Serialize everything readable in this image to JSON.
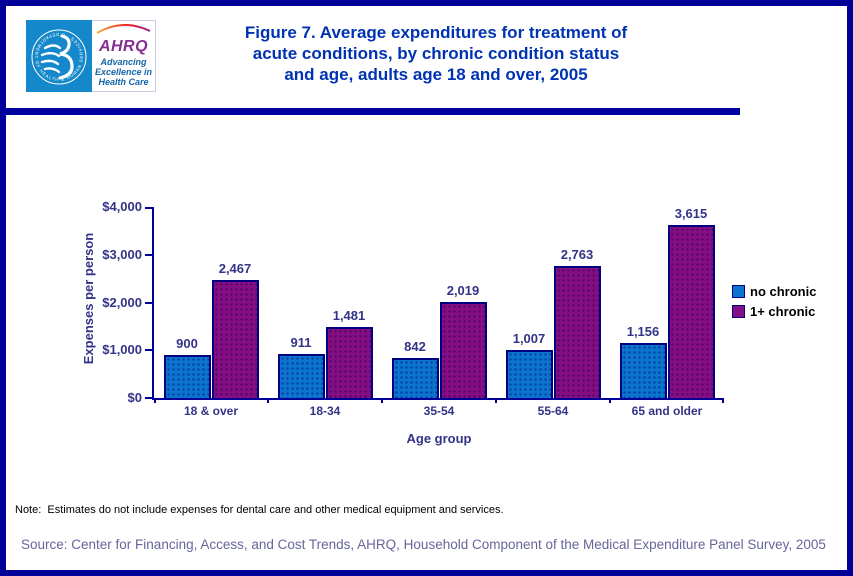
{
  "header": {
    "hhs_seal_text": "DEPARTMENT OF HEALTH & HUMAN SERVICES · USA",
    "ahrq_acronym": "AHRQ",
    "ahrq_tagline_lines": [
      "Advancing",
      "Excellence in",
      "Health Care"
    ],
    "title_lines": [
      "Figure 7. Average expenditures for treatment of",
      "acute conditions, by chronic condition status",
      "and age, adults age 18 and over, 2005"
    ]
  },
  "chart_data": {
    "type": "bar",
    "categories": [
      "18 & over",
      "18-34",
      "35-54",
      "55-64",
      "65 and older"
    ],
    "series": [
      {
        "name": "no chronic",
        "color": "#0B74CC",
        "values": [
          900,
          911,
          842,
          1007,
          1156
        ]
      },
      {
        "name": "1+ chronic",
        "color": "#850E85",
        "values": [
          2467,
          1481,
          2019,
          2763,
          3615
        ]
      }
    ],
    "value_labels": [
      [
        "900",
        "911",
        "842",
        "1,007",
        "1,156"
      ],
      [
        "2,467",
        "1,481",
        "2,019",
        "2,763",
        "3,615"
      ]
    ],
    "xlabel": "Age group",
    "ylabel": "Expenses per person",
    "ylim": [
      0,
      4000
    ],
    "ytick_values": [
      0,
      1000,
      2000,
      3000,
      4000
    ],
    "ytick_labels": [
      "$0",
      "$1,000",
      "$2,000",
      "$3,000",
      "$4,000"
    ],
    "grid": false,
    "legend_position": "right"
  },
  "footer": {
    "note": "Note:  Estimates do not include expenses for dental care and other medical equipment and services.",
    "source": "Source: Center for Financing, Access, and Cost Trends, AHRQ, Household Component of the Medical Expenditure Panel Survey, 2005"
  },
  "colors": {
    "page_border": "#000099",
    "divider": "#0000A0",
    "title_text": "#0033B4",
    "axis_text": "#333387",
    "axis_line": "#000099",
    "bar_no_chronic": "#0B74CC",
    "bar_1plus_chronic": "#850E85",
    "bar_border": "#000080",
    "legend_text": "#000000",
    "note_text": "#000000",
    "source_text": "#666699",
    "hhs_panel_blue": "#1488CA",
    "ahrq_purple": "#862D91",
    "ahrq_blue": "#1464A8"
  }
}
